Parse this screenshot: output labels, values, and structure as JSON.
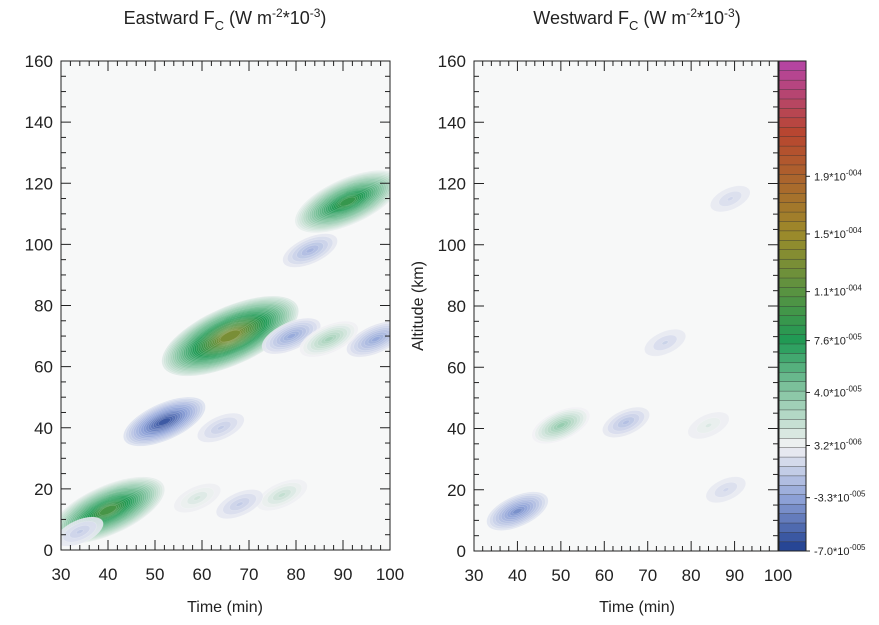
{
  "chart_data": [
    {
      "type": "heatmap",
      "title": "Eastward F_C (W m^-2*10^-3)",
      "title_parts": {
        "main": "Eastward F",
        "sub": "C",
        "unit_pre": " (W m",
        "sup1": "-2",
        "mid": "*10",
        "sup2": "-3",
        "close": ")"
      },
      "xlabel": "Time (min)",
      "ylabel": "",
      "xlim": [
        30,
        100
      ],
      "ylim": [
        0,
        160
      ],
      "x_ticks": [
        30,
        40,
        50,
        60,
        70,
        80,
        90,
        100
      ],
      "y_ticks": [
        0,
        20,
        40,
        60,
        80,
        100,
        120,
        140,
        160
      ],
      "x_tick_labels": [
        "30",
        "40",
        "50",
        "60",
        "70",
        "80",
        "90",
        "100"
      ],
      "y_tick_labels": [
        "0",
        "20",
        "40",
        "60",
        "80",
        "100",
        "120",
        "140",
        "160"
      ],
      "features": [
        {
          "sign": "positive",
          "x_center": 40,
          "y_center": 13,
          "amplitude": 0.0001
        },
        {
          "sign": "negative",
          "x_center": 34,
          "y_center": 6,
          "amplitude": -1.5e-05
        },
        {
          "sign": "negative",
          "x_center": 52,
          "y_center": 42,
          "amplitude": -6e-05
        },
        {
          "sign": "positive",
          "x_center": 66,
          "y_center": 70,
          "amplitude": 0.00013
        },
        {
          "sign": "positive",
          "x_center": 91,
          "y_center": 114,
          "amplitude": 9e-05
        },
        {
          "sign": "negative",
          "x_center": 83,
          "y_center": 98,
          "amplitude": -2.5e-05
        },
        {
          "sign": "negative",
          "x_center": 79,
          "y_center": 70,
          "amplitude": -3e-05
        },
        {
          "sign": "negative",
          "x_center": 97,
          "y_center": 69,
          "amplitude": -3e-05
        },
        {
          "sign": "positive",
          "x_center": 87,
          "y_center": 69,
          "amplitude": 3e-05
        },
        {
          "sign": "negative",
          "x_center": 64,
          "y_center": 40,
          "amplitude": -1.5e-05
        },
        {
          "sign": "positive",
          "x_center": 77,
          "y_center": 18,
          "amplitude": 2e-05
        },
        {
          "sign": "negative",
          "x_center": 68,
          "y_center": 15,
          "amplitude": -1.5e-05
        },
        {
          "sign": "positive",
          "x_center": 59,
          "y_center": 17,
          "amplitude": 1.5e-05
        }
      ]
    },
    {
      "type": "heatmap",
      "title": "Westward F_C (W m^-2*10^-3)",
      "title_parts": {
        "main": "Westward F",
        "sub": "C",
        "unit_pre": " (W m",
        "sup1": "-2",
        "mid": "*10",
        "sup2": "-3",
        "close": ")"
      },
      "xlabel": "Time (min)",
      "ylabel": "Altitude (km)",
      "xlim": [
        30,
        100
      ],
      "ylim": [
        0,
        160
      ],
      "x_ticks": [
        30,
        40,
        50,
        60,
        70,
        80,
        90,
        100
      ],
      "y_ticks": [
        0,
        20,
        40,
        60,
        80,
        100,
        120,
        140,
        160
      ],
      "x_tick_labels": [
        "30",
        "40",
        "50",
        "60",
        "70",
        "80",
        "90",
        "100"
      ],
      "y_tick_labels": [
        "0",
        "20",
        "40",
        "60",
        "80",
        "100",
        "120",
        "140",
        "160"
      ],
      "features": [
        {
          "sign": "negative",
          "x_center": 40,
          "y_center": 13,
          "amplitude": -4e-05
        },
        {
          "sign": "positive",
          "x_center": 50,
          "y_center": 41,
          "amplitude": 3.5e-05
        },
        {
          "sign": "negative",
          "x_center": 65,
          "y_center": 42,
          "amplitude": -2e-05
        },
        {
          "sign": "positive",
          "x_center": 84,
          "y_center": 41,
          "amplitude": 1.2e-05
        },
        {
          "sign": "negative",
          "x_center": 74,
          "y_center": 68,
          "amplitude": -1.2e-05
        },
        {
          "sign": "negative",
          "x_center": 89,
          "y_center": 115,
          "amplitude": -1e-05
        },
        {
          "sign": "negative",
          "x_center": 88,
          "y_center": 20,
          "amplitude": -1e-05
        }
      ]
    }
  ],
  "colorbar": {
    "min": -7e-05,
    "max": 0.00027,
    "levels": 52,
    "colors": [
      "#1d3d8f",
      "#8fa3d8",
      "#f2f2f4",
      "#1f9a55",
      "#9c8a2a",
      "#b8462f",
      "#b545a8"
    ],
    "tick_labels": [
      "-7.0*10",
      "-3.3*10",
      "3.2*10",
      "4.0*10",
      "7.6*10",
      "1.1*10",
      "1.5*10",
      "1.9*10"
    ],
    "tick_exponents": [
      "-005",
      "-005",
      "-006",
      "-005",
      "-005",
      "-004",
      "-004",
      "-004"
    ],
    "tick_values": [
      -7e-05,
      -3.3e-05,
      3.2e-06,
      4e-05,
      7.6e-05,
      0.00011,
      0.00015,
      0.00019
    ]
  }
}
